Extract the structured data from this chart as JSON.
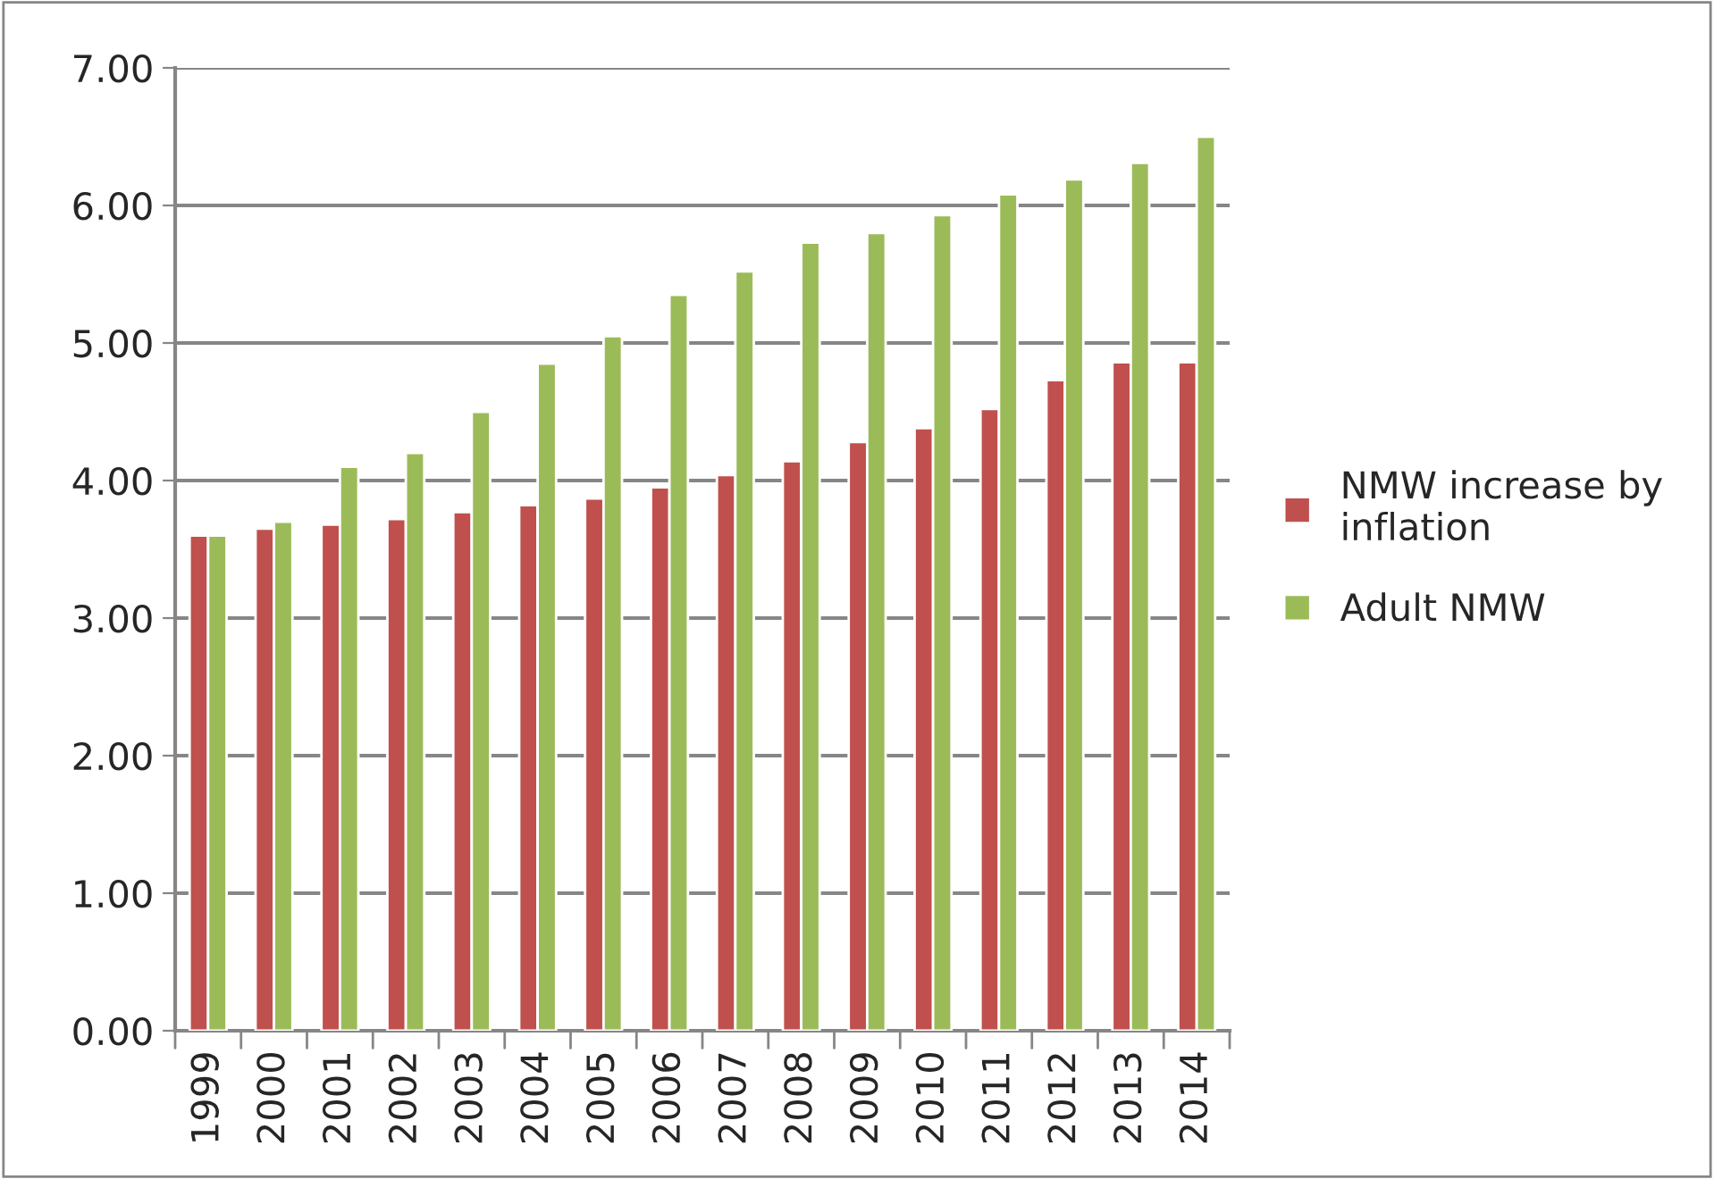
{
  "chart_data": {
    "type": "bar",
    "categories": [
      "1999",
      "2000",
      "2001",
      "2002",
      "2003",
      "2004",
      "2005",
      "2006",
      "2007",
      "2008",
      "2009",
      "2010",
      "2011",
      "2012",
      "2013",
      "2014"
    ],
    "series": [
      {
        "name": "NMW increase by inflation",
        "color": "#c0504d",
        "values": [
          3.6,
          3.65,
          3.68,
          3.72,
          3.77,
          3.82,
          3.87,
          3.95,
          4.04,
          4.14,
          4.28,
          4.38,
          4.52,
          4.73,
          4.86,
          4.86
        ]
      },
      {
        "name": "Adult NMW",
        "color": "#9bbb59",
        "values": [
          3.6,
          3.7,
          4.1,
          4.2,
          4.5,
          4.85,
          5.05,
          5.35,
          5.52,
          5.73,
          5.8,
          5.93,
          6.08,
          6.19,
          6.31,
          6.5
        ]
      }
    ],
    "ylim": [
      0,
      7
    ],
    "yticks": [
      {
        "value": 0,
        "label": "0.00"
      },
      {
        "value": 1,
        "label": "1.00"
      },
      {
        "value": 2,
        "label": "2.00"
      },
      {
        "value": 3,
        "label": "3.00"
      },
      {
        "value": 4,
        "label": "4.00"
      },
      {
        "value": 5,
        "label": "5.00"
      },
      {
        "value": 6,
        "label": "6.00"
      },
      {
        "value": 7,
        "label": "7.00"
      }
    ],
    "grid": "y",
    "legend": "right"
  }
}
